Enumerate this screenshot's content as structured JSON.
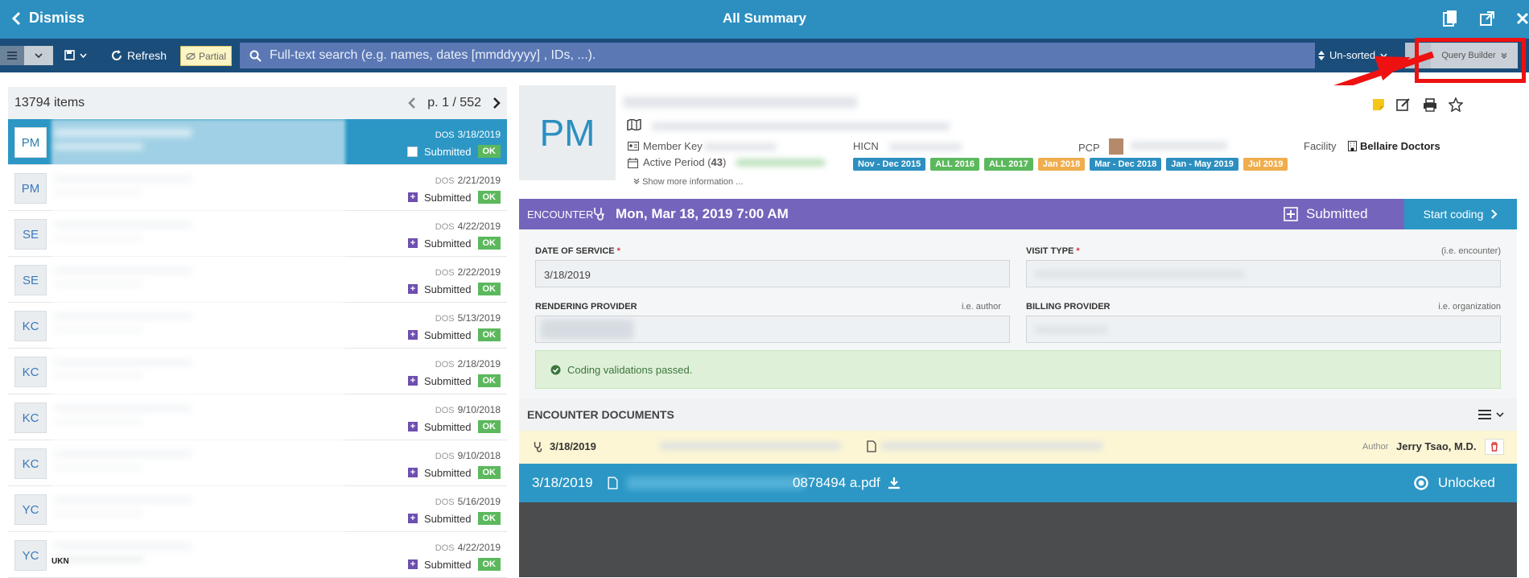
{
  "header": {
    "dismiss_label": "Dismiss",
    "title": "All Summary"
  },
  "toolbar": {
    "refresh_label": "Refresh",
    "partial_label": "Partial",
    "search_placeholder": "Full-text search (e.g. names, dates [mmddyyyy] , IDs, ...).",
    "sort_label": "Un-sorted",
    "query_builder_label": "Query Builder"
  },
  "list": {
    "count_label": "13794 items",
    "page_label": "p. 1 / 552",
    "dos_label": "DOS",
    "rows": [
      {
        "initials": "PM",
        "dos": "3/18/2019",
        "status": "Submitted",
        "badge": "OK"
      },
      {
        "initials": "PM",
        "dos": "2/21/2019",
        "status": "Submitted",
        "badge": "OK"
      },
      {
        "initials": "SE",
        "dos": "4/22/2019",
        "status": "Submitted",
        "badge": "OK"
      },
      {
        "initials": "SE",
        "dos": "2/22/2019",
        "status": "Submitted",
        "badge": "OK"
      },
      {
        "initials": "KC",
        "dos": "5/13/2019",
        "status": "Submitted",
        "badge": "OK"
      },
      {
        "initials": "KC",
        "dos": "2/18/2019",
        "status": "Submitted",
        "badge": "OK"
      },
      {
        "initials": "KC",
        "dos": "9/10/2018",
        "status": "Submitted",
        "badge": "OK"
      },
      {
        "initials": "KC",
        "dos": "9/10/2018",
        "status": "Submitted",
        "badge": "OK"
      },
      {
        "initials": "YC",
        "dos": "5/16/2019",
        "status": "Submitted",
        "badge": "OK"
      },
      {
        "initials": "YC",
        "dos": "4/22/2019",
        "status": "Submitted",
        "badge": "OK"
      }
    ],
    "ukn_label": "UKN"
  },
  "patient": {
    "initials": "PM",
    "member_key_label": "Member Key",
    "active_period_label": "Active Period",
    "active_period_count": "43",
    "show_more_label": "Show more information ...",
    "hicn_label": "HICN",
    "pcp_label": "PCP",
    "facility_label": "Facility",
    "facility_value": "Bellaire Doctors",
    "periods": [
      {
        "label": "Nov - Dec 2015",
        "color": "#2c8fc0"
      },
      {
        "label": "ALL 2016",
        "color": "#5cb85c"
      },
      {
        "label": "ALL 2017",
        "color": "#5cb85c"
      },
      {
        "label": "Jan 2018",
        "color": "#f0ad4e"
      },
      {
        "label": "Mar - Dec 2018",
        "color": "#2c8fc0"
      },
      {
        "label": "Jan - May 2019",
        "color": "#2c8fc0"
      },
      {
        "label": "Jul 2019",
        "color": "#f0ad4e"
      }
    ]
  },
  "encounter": {
    "label": "ENCOUNTER",
    "date": "Mon, Mar 18, 2019 7:00 AM",
    "status": "Submitted",
    "start_coding_label": "Start coding"
  },
  "form": {
    "date_of_service_label": "DATE OF SERVICE",
    "date_of_service_value": "3/18/2019",
    "visit_type_label": "VISIT TYPE",
    "visit_type_hint": "(i.e. encounter)",
    "rendering_provider_label": "RENDERING PROVIDER",
    "rendering_provider_hint": "i.e. author",
    "billing_provider_label": "BILLING PROVIDER",
    "billing_provider_hint": "i.e. organization",
    "required_mark": "*",
    "validation_message": "Coding validations passed."
  },
  "documents": {
    "title": "ENCOUNTER DOCUMENTS",
    "row_date": "3/18/2019",
    "author_label": "Author",
    "author_name": "Jerry Tsao, M.D.",
    "pdf_date": "3/18/2019",
    "pdf_name": "0878494 a.pdf",
    "lock_status": "Unlocked"
  },
  "colors": {
    "topbar": "#2c8fc0",
    "toolbar": "#1b4d7a",
    "encounter_bar": "#7564bc",
    "ok_badge": "#5cb85c",
    "annotation_red": "#ee1111"
  }
}
